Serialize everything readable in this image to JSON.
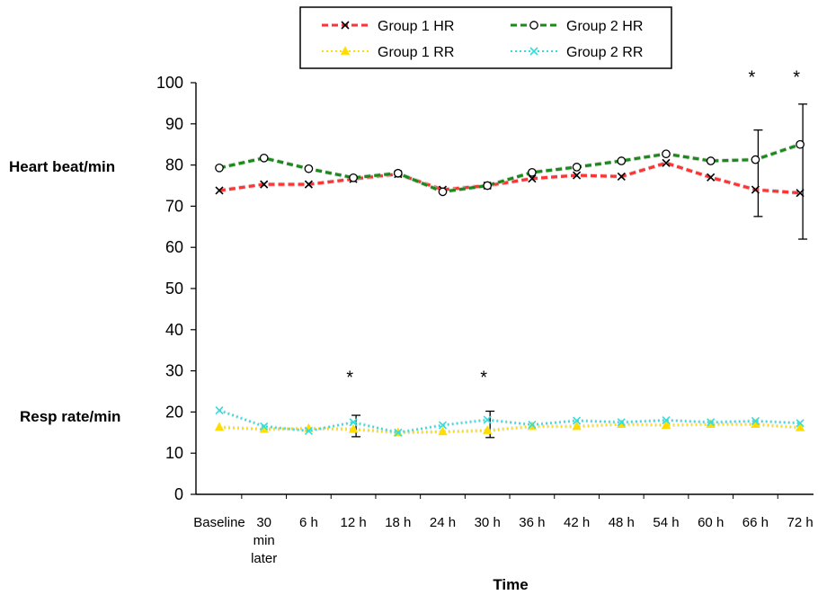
{
  "chart_data": {
    "type": "line",
    "xlabel": "Time",
    "ylabel_hr": "Heart beat/min",
    "ylabel_rr": "Resp rate/min",
    "ylim": [
      0,
      100
    ],
    "yticks": [
      0,
      10,
      20,
      30,
      40,
      50,
      60,
      70,
      80,
      90,
      100
    ],
    "categories": [
      [
        "Baseline"
      ],
      [
        "30",
        "min",
        "later"
      ],
      [
        "6 h"
      ],
      [
        "12 h"
      ],
      [
        "18 h"
      ],
      [
        "24 h"
      ],
      [
        "30 h"
      ],
      [
        "36 h"
      ],
      [
        "42 h"
      ],
      [
        "48 h"
      ],
      [
        "54 h"
      ],
      [
        "60 h"
      ],
      [
        "66 h"
      ],
      [
        "72 h"
      ]
    ],
    "legend": {
      "position": "top",
      "labels": [
        "Group 1 HR",
        "Group 1 RR",
        "Group 2 HR",
        "Group 2 RR"
      ]
    },
    "grid": false,
    "series": [
      {
        "name": "Group 1 HR",
        "color": "#ff3333",
        "marker": "x",
        "dash": "dashed",
        "values": [
          73.8,
          75.3,
          75.3,
          76.6,
          77.8,
          74.0,
          75.0,
          76.7,
          77.5,
          77.2,
          80.5,
          77.0,
          74.0,
          73.2
        ]
      },
      {
        "name": "Group 2 HR",
        "color": "#1a8a1a",
        "marker": "circle",
        "dash": "dashed",
        "values": [
          79.3,
          81.7,
          79.1,
          76.9,
          78.0,
          73.5,
          75.0,
          78.2,
          79.5,
          81.0,
          82.7,
          81.0,
          81.3,
          85.0
        ]
      },
      {
        "name": "Group 1 RR",
        "color": "#ffdd00",
        "marker": "triangle",
        "dash": "dotted",
        "values": [
          16.3,
          15.8,
          16.0,
          15.8,
          15.0,
          15.2,
          15.5,
          16.5,
          16.5,
          17.0,
          16.8,
          17.0,
          17.0,
          16.2
        ]
      },
      {
        "name": "Group 2 RR",
        "color": "#33dddd",
        "marker": "x",
        "dash": "dotted",
        "values": [
          20.4,
          16.5,
          15.4,
          17.5,
          15.0,
          16.8,
          18.1,
          16.9,
          17.9,
          17.5,
          18.0,
          17.5,
          17.8,
          17.3
        ]
      }
    ],
    "error_bars": [
      {
        "x_index": 12,
        "low": 67.5,
        "high": 88.5
      },
      {
        "x_index": 13,
        "low": 62.0,
        "high": 94.8
      },
      {
        "x_index": 3,
        "low": 14.0,
        "high": 19.2
      },
      {
        "x_index": 6,
        "low": 13.8,
        "high": 20.2
      }
    ],
    "significance_markers": [
      {
        "x_index": 3,
        "level": 30,
        "text": "*"
      },
      {
        "x_index": 6,
        "level": 30,
        "text": "*"
      },
      {
        "x_index": 12,
        "level": 103,
        "text": "*"
      },
      {
        "x_index": 13,
        "level": 103,
        "text": "*"
      }
    ]
  }
}
